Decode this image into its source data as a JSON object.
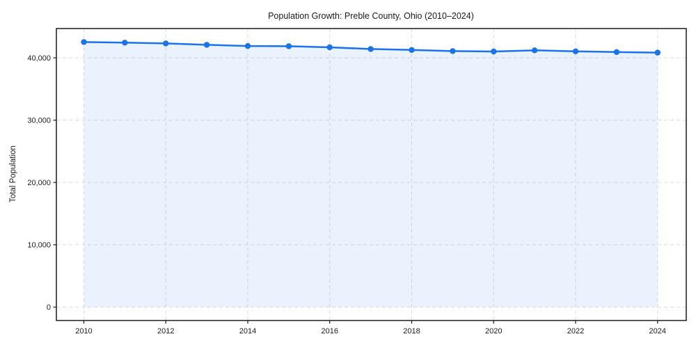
{
  "figure": {
    "background": "#ffffff"
  },
  "chart_data": {
    "type": "line",
    "title": "Population Growth: Preble County, Ohio (2010–2024)",
    "xlabel": "",
    "ylabel": "Total Population",
    "x": [
      2010,
      2011,
      2012,
      2013,
      2014,
      2015,
      2016,
      2017,
      2018,
      2019,
      2020,
      2021,
      2022,
      2023,
      2024
    ],
    "series": [
      {
        "name": "Total Population",
        "values": [
          42530,
          42430,
          42310,
          42090,
          41900,
          41860,
          41680,
          41420,
          41260,
          41080,
          41010,
          41200,
          41040,
          40930,
          40840
        ]
      }
    ],
    "xticks": [
      2010,
      2012,
      2014,
      2016,
      2018,
      2020,
      2022,
      2024
    ],
    "yticks": [
      0,
      10000,
      20000,
      30000,
      40000
    ],
    "ytick_labels": [
      "0",
      "10,000",
      "20,000",
      "30,000",
      "40,000"
    ],
    "xlim": [
      2009.33,
      2024.7
    ],
    "ylim": [
      -2150,
      44700
    ],
    "grid": {
      "on": true,
      "style": "dashed",
      "color": "#dcdcdc"
    },
    "legend": "none",
    "marker": "circle",
    "area_fill": true,
    "colors": {
      "line": "#1a73e8",
      "marker": "#1a73e8",
      "fill": "rgba(26,115,232,0.09)",
      "spine": "#1a1a1a",
      "tick": "#1a1a1a",
      "text": "#1a1a1a"
    }
  }
}
